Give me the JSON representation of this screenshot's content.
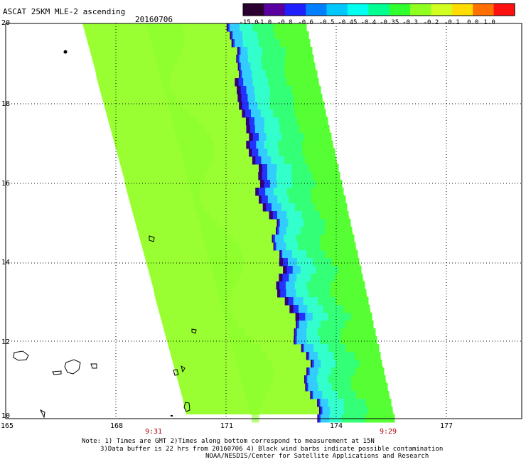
{
  "header": {
    "title": "ASCAT 25KM MLE-2 ascending",
    "date": "20160706"
  },
  "colorbar": {
    "labels": [
      "-15.0",
      "-1.0",
      "-0.8",
      "-0.6",
      "-0.5",
      "-0.45",
      "-0.4",
      "-0.35",
      "-0.3",
      "-0.2",
      "-0.1",
      "0.0",
      "1.0"
    ],
    "colors": [
      "#2a0030",
      "#5a00a0",
      "#2020ff",
      "#0080ff",
      "#00c8ff",
      "#00ffee",
      "#00ff90",
      "#30ff30",
      "#90ff20",
      "#d0ff20",
      "#ffdd00",
      "#ff7000",
      "#ff1010"
    ]
  },
  "map": {
    "lat_labels": [
      "20",
      "18",
      "16",
      "14",
      "12",
      "10"
    ],
    "lon_labels": [
      "165",
      "168",
      "171",
      "174",
      "177"
    ],
    "time_labels": [
      "9:31",
      "9:29"
    ],
    "swath_color": "#99ff33",
    "band_colors": [
      "#55ff33",
      "#33ff77",
      "#33ffcc",
      "#33ccff",
      "#2233ff",
      "#330077"
    ]
  },
  "footer": {
    "note_line1": "Note: 1) Times are GMT 2)Times along bottom correspond to measurement at 15N",
    "note_line2": "3)Data buffer is 22 hrs from 20160706 4) Black wind barbs indicate possible contamination",
    "credit": "NOAA/NESDIS/Center for Satellite Applications and Research"
  }
}
